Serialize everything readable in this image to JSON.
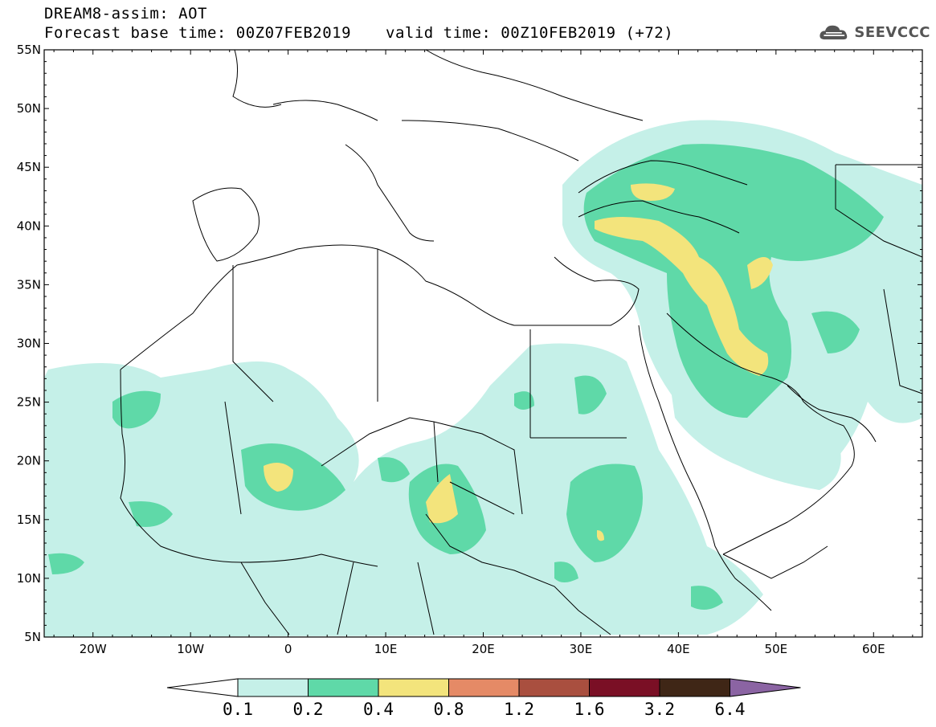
{
  "header": {
    "title": "DREAM8-assim: AOT",
    "base_time": "Forecast base time: 00Z07FEB2019",
    "valid_time": "valid time: 00Z10FEB2019 (+72)"
  },
  "logo": {
    "text": "SEEVCCC",
    "icon": "cloud-icon"
  },
  "map": {
    "lat_labels": [
      "55N",
      "50N",
      "45N",
      "40N",
      "35N",
      "30N",
      "25N",
      "20N",
      "15N",
      "10N",
      "5N"
    ],
    "lon_labels": [
      "20W",
      "10W",
      "0",
      "10E",
      "20E",
      "30E",
      "40E",
      "50E",
      "60E"
    ],
    "lon_range": [
      -25,
      65
    ],
    "lat_range": [
      5,
      55
    ]
  },
  "colorbar": {
    "thresholds": [
      "0.1",
      "0.2",
      "0.4",
      "0.8",
      "1.2",
      "1.6",
      "3.2",
      "6.4"
    ],
    "colors": [
      "#c5f0e8",
      "#5fd9a8",
      "#f3e47c",
      "#e58a66",
      "#a94f3f",
      "#7a0f25",
      "#3f2616",
      "#8b64a3"
    ],
    "under_color": "#ffffff",
    "over_color": "#8b64a3"
  }
}
